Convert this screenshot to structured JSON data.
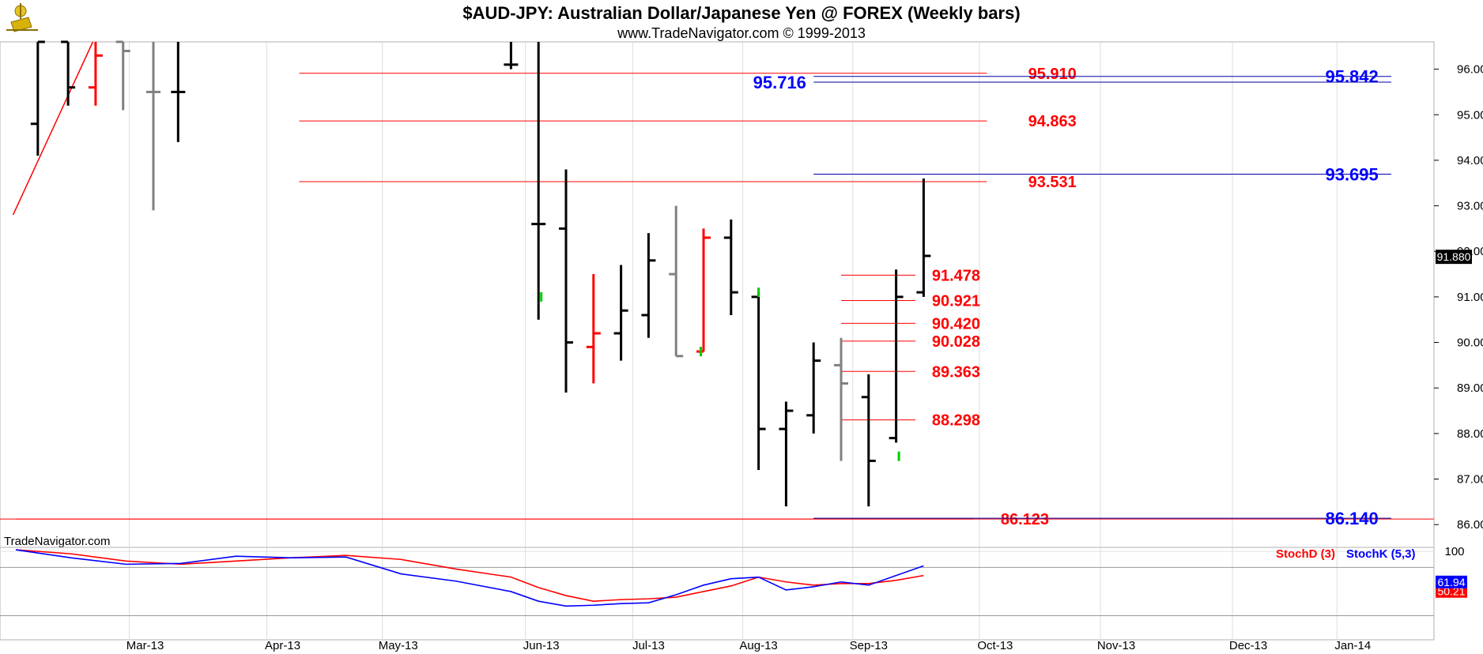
{
  "title": "$AUD-JPY:  Australian Dollar/Japanese Yen @ FOREX  (Weekly bars)",
  "subtitle": "www.TradeNavigator.com © 1999-2013",
  "watermark": "TradeNavigator.com",
  "chart_data": [
    {
      "type": "ohlc",
      "x_labels": [
        "Mar-13",
        "Apr-13",
        "May-13",
        "Jun-13",
        "Jul-13",
        "Aug-13",
        "Sep-13",
        "Oct-13",
        "Nov-13",
        "Dec-13",
        "Jan-14"
      ],
      "x_label_weeks": [
        4.7,
        9.7,
        13.9,
        19.1,
        23.0,
        27.0,
        31.0,
        35.6,
        40.0,
        44.8,
        48.6
      ],
      "ylim": [
        85.5,
        96.6
      ],
      "y_ticks": [
        "86.000",
        "87.000",
        "88.000",
        "89.000",
        "90.000",
        "91.000",
        "92.000",
        "93.000",
        "94.000",
        "95.000",
        "96.000"
      ],
      "y_tick_values": [
        86,
        87,
        88,
        89,
        90,
        91,
        92,
        93,
        94,
        95,
        96
      ],
      "last_price": "91.880",
      "last_price_value": 91.88,
      "colors": {
        "up": "#000000",
        "down": "#ff0000",
        "neutral": "#808080",
        "volume_mark": "#00cc00"
      },
      "bars": [
        {
          "w": 0.8,
          "o": 94.8,
          "h": 96.6,
          "l": 94.1,
          "c": 96.6,
          "color": "black"
        },
        {
          "w": 1.9,
          "o": 96.6,
          "h": 96.6,
          "l": 95.2,
          "c": 95.6,
          "color": "black"
        },
        {
          "w": 2.9,
          "o": 95.6,
          "h": 96.6,
          "l": 95.2,
          "c": 96.3,
          "color": "red"
        },
        {
          "w": 3.9,
          "o": 96.6,
          "h": 96.6,
          "l": 95.1,
          "c": 96.4,
          "color": "gray"
        },
        {
          "w": 5.0,
          "o": 95.5,
          "h": 96.6,
          "l": 92.9,
          "c": 95.5,
          "color": "gray"
        },
        {
          "w": 5.9,
          "o": 95.5,
          "h": 96.6,
          "l": 94.4,
          "c": 95.5,
          "color": "black"
        },
        {
          "w": 18.0,
          "o": 96.1,
          "h": 96.6,
          "l": 96.0,
          "c": 96.1,
          "color": "black"
        },
        {
          "w": 19.0,
          "o": 92.6,
          "h": 96.6,
          "l": 90.5,
          "c": 92.6,
          "color": "black"
        },
        {
          "w": 20.0,
          "o": 92.5,
          "h": 93.8,
          "l": 88.9,
          "c": 90.0,
          "color": "black"
        },
        {
          "w": 21.0,
          "o": 89.9,
          "h": 91.5,
          "l": 89.1,
          "c": 90.2,
          "color": "red"
        },
        {
          "w": 22.0,
          "o": 90.2,
          "h": 91.7,
          "l": 89.6,
          "c": 90.7,
          "color": "black"
        },
        {
          "w": 23.0,
          "o": 90.6,
          "h": 92.4,
          "l": 90.1,
          "c": 91.8,
          "color": "black"
        },
        {
          "w": 24.0,
          "o": 91.5,
          "h": 93.0,
          "l": 89.7,
          "c": 89.7,
          "color": "gray"
        },
        {
          "w": 25.0,
          "o": 89.8,
          "h": 92.5,
          "l": 89.8,
          "c": 92.3,
          "color": "red"
        },
        {
          "w": 26.0,
          "o": 92.3,
          "h": 92.7,
          "l": 90.6,
          "c": 91.1,
          "color": "black"
        },
        {
          "w": 27.0,
          "o": 91.0,
          "h": 91.1,
          "l": 87.2,
          "c": 88.1,
          "color": "black"
        },
        {
          "w": 28.0,
          "o": 88.1,
          "h": 88.7,
          "l": 86.4,
          "c": 88.5,
          "color": "black"
        },
        {
          "w": 29.0,
          "o": 88.4,
          "h": 90.0,
          "l": 88.0,
          "c": 89.6,
          "color": "black"
        },
        {
          "w": 30.0,
          "o": 89.5,
          "h": 90.1,
          "l": 87.4,
          "c": 89.1,
          "color": "gray"
        },
        {
          "w": 31.0,
          "o": 88.8,
          "h": 89.3,
          "l": 86.4,
          "c": 87.4,
          "color": "black"
        },
        {
          "w": 32.0,
          "o": 87.9,
          "h": 91.6,
          "l": 87.8,
          "c": 91.0,
          "color": "black"
        },
        {
          "w": 33.0,
          "o": 91.1,
          "h": 93.6,
          "l": 91.0,
          "c": 91.9,
          "color": "black"
        }
      ],
      "green_marks": [
        [
          19.1,
          91.0
        ],
        [
          24.9,
          89.8
        ],
        [
          27.0,
          91.1
        ],
        [
          32.1,
          87.5
        ]
      ],
      "levels_red": [
        {
          "label": "95.910",
          "value": 95.91,
          "x0": 10.3,
          "x1": 35.3,
          "lx": 36.8
        },
        {
          "label": "94.863",
          "value": 94.863,
          "x0": 10.3,
          "x1": 35.3,
          "lx": 36.8
        },
        {
          "label": "93.531",
          "value": 93.531,
          "x0": 10.3,
          "x1": 35.3,
          "lx": 36.8
        },
        {
          "label": "91.478",
          "value": 91.478,
          "x0": 30.0,
          "x1": 32.7,
          "lx": 33.3
        },
        {
          "label": "90.921",
          "value": 90.921,
          "x0": 30.0,
          "x1": 32.7,
          "lx": 33.3
        },
        {
          "label": "90.420",
          "value": 90.42,
          "x0": 30.0,
          "x1": 32.7,
          "lx": 33.3
        },
        {
          "label": "90.028",
          "value": 90.028,
          "x0": 30.0,
          "x1": 32.7,
          "lx": 33.3
        },
        {
          "label": "89.363",
          "value": 89.363,
          "x0": 30.0,
          "x1": 32.7,
          "lx": 33.3
        },
        {
          "label": "88.298",
          "value": 88.298,
          "x0": 30.0,
          "x1": 32.7,
          "lx": 33.3
        },
        {
          "label": "86.123",
          "value": 86.123,
          "x0": 0,
          "x1": 34.8,
          "lx": 35.8
        }
      ],
      "levels_blue": [
        {
          "label": "95.842",
          "value": 95.842,
          "x0": 29.0,
          "x1": 50.0,
          "lx": 47.6
        },
        {
          "label": "95.716",
          "value": 95.716,
          "x0": 29.0,
          "x1": 50.0,
          "lx": 26.8
        },
        {
          "label": "93.695",
          "value": 93.695,
          "x0": 29.0,
          "x1": 50.0,
          "lx": 47.6
        },
        {
          "label": "86.140",
          "value": 86.14,
          "x0": 29.0,
          "x1": 50.0,
          "lx": 47.6
        }
      ],
      "trendline": [
        [
          -0.1,
          92.8
        ],
        [
          2.8,
          96.6
        ]
      ]
    },
    {
      "type": "line",
      "ylim": [
        -10,
        105
      ],
      "y_ticks": [
        "100"
      ],
      "y_tick_values": [
        100
      ],
      "hlines": [
        100,
        80,
        20
      ],
      "series": [
        {
          "name": "StochD (3)",
          "color": "#ff0000",
          "last": "50.21",
          "last_value": 50.21,
          "x": [
            0,
            2,
            4,
            6,
            8,
            10,
            12,
            14,
            16,
            18,
            19,
            20,
            21,
            22,
            23,
            24,
            25,
            26,
            27,
            28,
            29,
            30,
            31,
            32,
            33
          ],
          "values": [
            102,
            97,
            88,
            84,
            88,
            92,
            95,
            90,
            78,
            68,
            55,
            45,
            38,
            40,
            41,
            43,
            50,
            57,
            68,
            62,
            58,
            60,
            60,
            64,
            70
          ]
        },
        {
          "name": "StochK (5,3)",
          "color": "#0000ff",
          "last": "61.94",
          "last_value": 61.94,
          "x": [
            0,
            2,
            4,
            6,
            8,
            10,
            12,
            14,
            16,
            18,
            19,
            20,
            21,
            22,
            23,
            24,
            25,
            26,
            27,
            28,
            29,
            30,
            31,
            32,
            33
          ],
          "values": [
            102,
            92,
            84,
            85,
            94,
            92,
            93,
            72,
            63,
            50,
            38,
            32,
            33,
            35,
            36,
            46,
            58,
            66,
            68,
            52,
            56,
            62,
            58,
            70,
            82
          ]
        }
      ]
    }
  ]
}
